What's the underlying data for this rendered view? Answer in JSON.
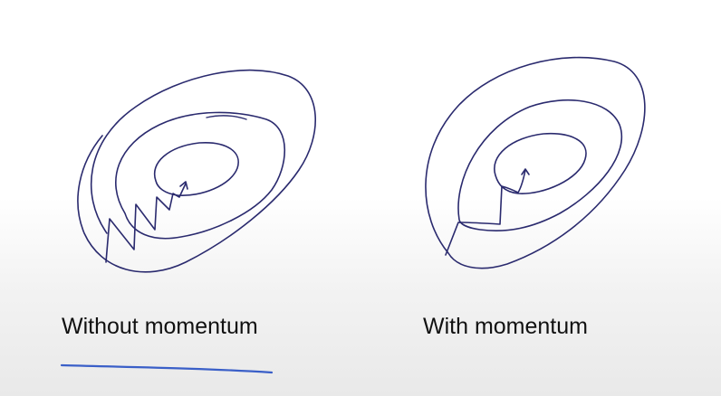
{
  "colors": {
    "ink": "#2a2a6e",
    "underline": "#3a5fc8",
    "text": "#111111"
  },
  "panels": [
    {
      "caption": "Without momentum"
    },
    {
      "caption": "With momentum"
    }
  ]
}
